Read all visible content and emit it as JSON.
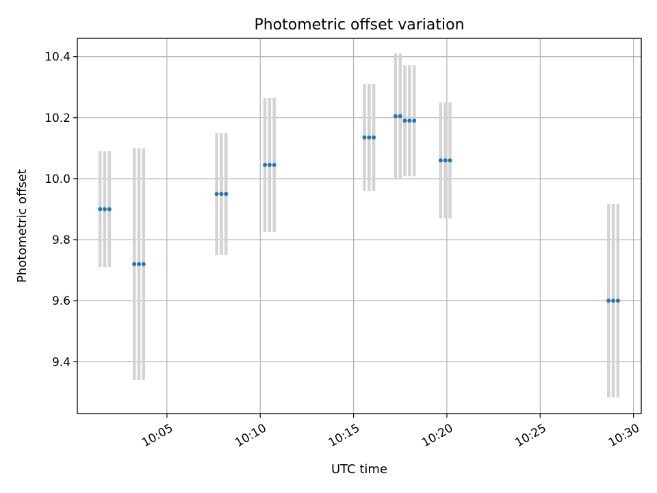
{
  "chart_data": {
    "type": "scatter",
    "title": "Photometric offset variation",
    "xlabel": "UTC time",
    "ylabel": "Photometric offset",
    "x_ticks": [
      "10:05",
      "10:10",
      "10:15",
      "10:20",
      "10:25",
      "10:30"
    ],
    "y_ticks": [
      9.4,
      9.6,
      9.8,
      10.0,
      10.2,
      10.4
    ],
    "xlim": [
      "10:00:12",
      "10:30:25"
    ],
    "ylim": [
      9.23,
      10.46
    ],
    "grid": true,
    "marker_color": "#1f77b4",
    "errorbar_color": "#d3d3d3",
    "points": [
      {
        "x": "10:01:25",
        "y": 9.9,
        "yerr": 0.19
      },
      {
        "x": "10:01:40",
        "y": 9.9,
        "yerr": 0.19
      },
      {
        "x": "10:01:55",
        "y": 9.9,
        "yerr": 0.19
      },
      {
        "x": "10:03:15",
        "y": 9.72,
        "yerr": 0.38
      },
      {
        "x": "10:03:30",
        "y": 9.72,
        "yerr": 0.38
      },
      {
        "x": "10:03:45",
        "y": 9.72,
        "yerr": 0.38
      },
      {
        "x": "10:07:40",
        "y": 9.95,
        "yerr": 0.2
      },
      {
        "x": "10:07:55",
        "y": 9.95,
        "yerr": 0.2
      },
      {
        "x": "10:08:10",
        "y": 9.95,
        "yerr": 0.2
      },
      {
        "x": "10:10:15",
        "y": 10.045,
        "yerr": 0.22
      },
      {
        "x": "10:10:30",
        "y": 10.045,
        "yerr": 0.22
      },
      {
        "x": "10:10:45",
        "y": 10.045,
        "yerr": 0.22
      },
      {
        "x": "10:15:35",
        "y": 10.135,
        "yerr": 0.175
      },
      {
        "x": "10:15:50",
        "y": 10.135,
        "yerr": 0.175
      },
      {
        "x": "10:16:05",
        "y": 10.135,
        "yerr": 0.175
      },
      {
        "x": "10:17:15",
        "y": 10.205,
        "yerr": 0.205
      },
      {
        "x": "10:17:30",
        "y": 10.205,
        "yerr": 0.205
      },
      {
        "x": "10:17:45",
        "y": 10.19,
        "yerr": 0.182
      },
      {
        "x": "10:18:00",
        "y": 10.19,
        "yerr": 0.182
      },
      {
        "x": "10:18:15",
        "y": 10.19,
        "yerr": 0.182
      },
      {
        "x": "10:19:40",
        "y": 10.06,
        "yerr": 0.19
      },
      {
        "x": "10:19:55",
        "y": 10.06,
        "yerr": 0.19
      },
      {
        "x": "10:20:10",
        "y": 10.06,
        "yerr": 0.19
      },
      {
        "x": "10:28:40",
        "y": 9.6,
        "yerr": 0.317
      },
      {
        "x": "10:28:55",
        "y": 9.6,
        "yerr": 0.317
      },
      {
        "x": "10:29:10",
        "y": 9.6,
        "yerr": 0.317
      }
    ]
  }
}
